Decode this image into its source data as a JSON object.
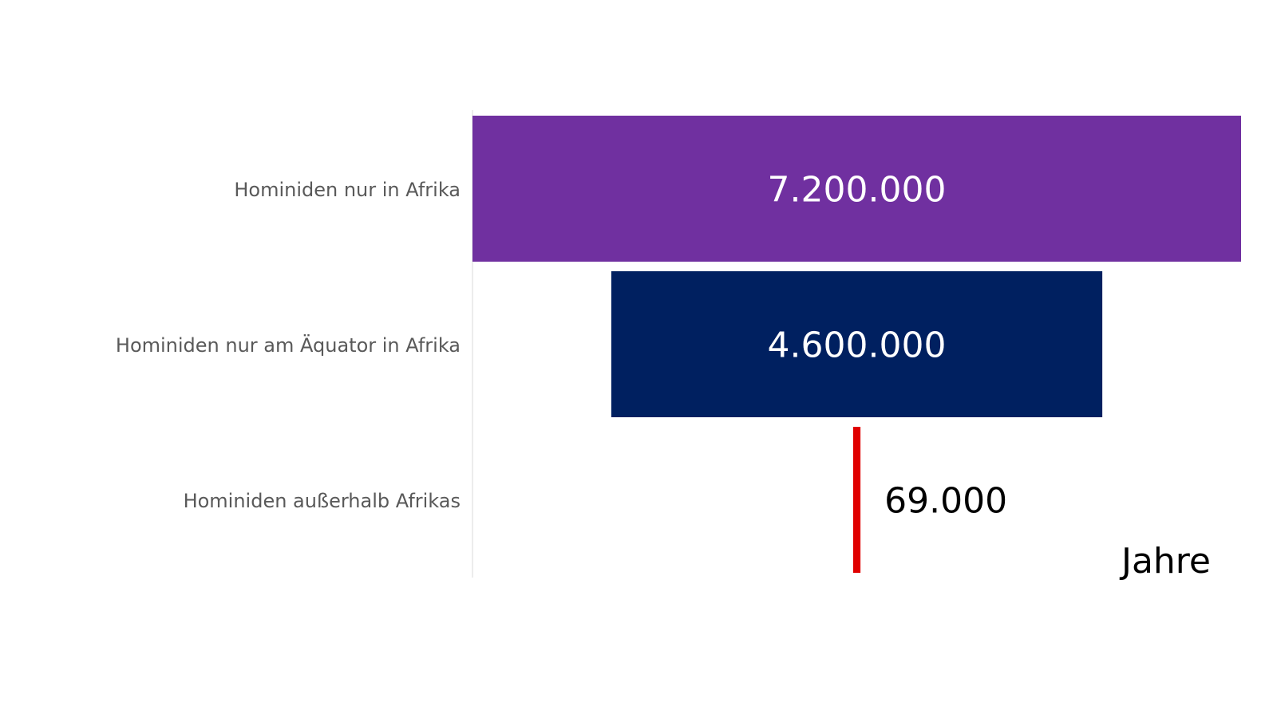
{
  "chart_data": {
    "type": "bar",
    "orientation": "horizontal",
    "layout": "funnel",
    "categories": [
      "Hominiden nur in Afrika",
      "Hominiden nur am Äquator in Afrika",
      "Hominiden außerhalb Afrikas"
    ],
    "values": [
      7200000,
      4600000,
      69000
    ],
    "value_labels": [
      "7.200.000",
      "4.600.000",
      "69.000"
    ],
    "colors": [
      "#7030A0",
      "#002060",
      "#E00000"
    ],
    "unit_label": "Jahre",
    "xlim": [
      0,
      7200000
    ],
    "title": "",
    "xlabel": "",
    "ylabel": "",
    "grid": false,
    "legend": "none"
  }
}
